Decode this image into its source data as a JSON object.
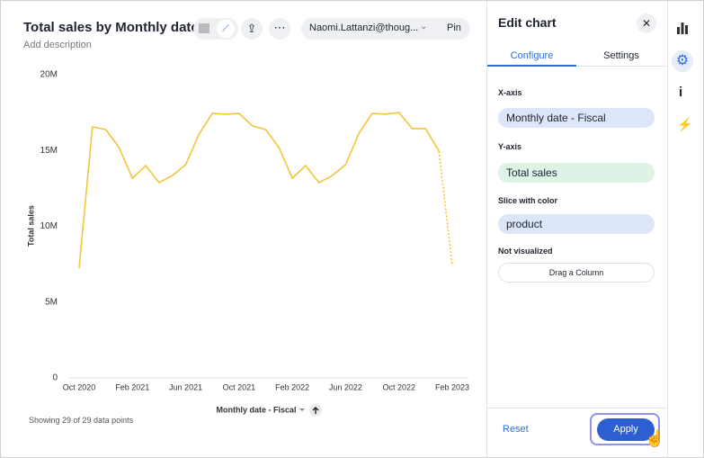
{
  "header": {
    "description": "Add description",
    "user": "Naomi.Lattanzi@thoug...",
    "pin": "Pin"
  },
  "chart_data": {
    "type": "line",
    "title": "Total sales by Monthly date...",
    "x_label": "Monthly date - Fiscal",
    "y_label": "Total sales",
    "categories": [
      "Oct 2020",
      null,
      null,
      null,
      "Feb 2021",
      null,
      null,
      null,
      "Jun 2021",
      null,
      null,
      null,
      "Oct 2021",
      null,
      null,
      null,
      "Feb 2022",
      null,
      null,
      null,
      "Jun 2022",
      null,
      null,
      null,
      "Oct 2022",
      null,
      null,
      null,
      "Feb 2023"
    ],
    "series": [
      {
        "name": "Total sales",
        "color": "#f2c53d",
        "values": [
          7240000,
          16560000,
          16380000,
          15190000,
          13170000,
          14000000,
          12880000,
          13350000,
          14070000,
          16080000,
          17450000,
          17390000,
          17450000,
          16620000,
          16380000,
          15190000,
          13170000,
          14000000,
          12880000,
          13350000,
          14070000,
          16140000,
          17450000,
          17390000,
          17500000,
          16440000,
          16440000,
          14960000,
          7420000
        ]
      }
    ],
    "ylim": [
      0,
      20000000
    ],
    "yticks": [
      {
        "value": 0,
        "label": "0"
      },
      {
        "value": 5000000,
        "label": "5M"
      },
      {
        "value": 10000000,
        "label": "10M"
      },
      {
        "value": 15000000,
        "label": "15M"
      },
      {
        "value": 20000000,
        "label": "20M"
      }
    ],
    "grid": false
  },
  "footer_note": "Showing 29 of 29 data points",
  "edit_panel": {
    "title": "Edit chart",
    "tabs": [
      "Configure",
      "Settings"
    ],
    "sections": [
      {
        "label": "X-axis",
        "item": "Monthly date - Fiscal"
      },
      {
        "label": "Y-axis",
        "item": "Total sales"
      },
      {
        "label": "Slice with color",
        "item": "product"
      },
      {
        "label": "Not visualized",
        "item": "Drag a Column"
      }
    ],
    "reset": "Reset",
    "apply": "Apply"
  }
}
